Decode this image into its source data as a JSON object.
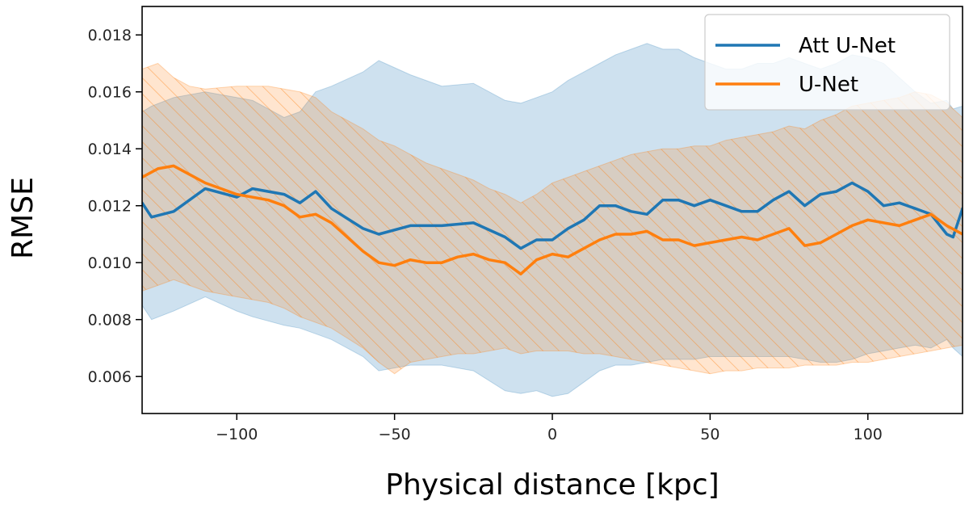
{
  "chart_data": {
    "type": "line",
    "title": "",
    "xlabel": "Physical distance [kpc]",
    "ylabel": "RMSE",
    "xlim": [
      -130,
      130
    ],
    "ylim": [
      0.0047,
      0.019
    ],
    "x_ticks": [
      -100,
      -50,
      0,
      50,
      100
    ],
    "x_tick_labels": [
      "−100",
      "−50",
      "0",
      "50",
      "100"
    ],
    "y_ticks": [
      0.006,
      0.008,
      0.01,
      0.012,
      0.014,
      0.016,
      0.018
    ],
    "y_tick_labels": [
      "0.006",
      "0.008",
      "0.010",
      "0.012",
      "0.014",
      "0.016",
      "0.018"
    ],
    "grid": false,
    "legend_position": "top-right",
    "series": [
      {
        "name": "Att U-Net",
        "color": "#1f77b4",
        "band_style": "solid fill",
        "x": [
          -130,
          -127,
          -120,
          -110,
          -100,
          -95,
          -85,
          -80,
          -75,
          -70,
          -60,
          -55,
          -45,
          -35,
          -25,
          -15,
          -10,
          -5,
          0,
          5,
          10,
          15,
          20,
          25,
          30,
          35,
          40,
          45,
          50,
          55,
          60,
          65,
          70,
          75,
          80,
          85,
          90,
          95,
          100,
          105,
          110,
          115,
          120,
          125,
          127,
          130
        ],
        "mean": [
          0.0121,
          0.0116,
          0.0118,
          0.0126,
          0.0123,
          0.0126,
          0.0124,
          0.0121,
          0.0125,
          0.0119,
          0.0112,
          0.011,
          0.0113,
          0.0113,
          0.0114,
          0.0109,
          0.0105,
          0.0108,
          0.0108,
          0.0112,
          0.0115,
          0.012,
          0.012,
          0.0118,
          0.0117,
          0.0122,
          0.0122,
          0.012,
          0.0122,
          0.012,
          0.0118,
          0.0118,
          0.0122,
          0.0125,
          0.012,
          0.0124,
          0.0125,
          0.0128,
          0.0125,
          0.012,
          0.0121,
          0.0119,
          0.0117,
          0.011,
          0.0109,
          0.0119
        ],
        "upper": [
          0.0153,
          0.0155,
          0.0158,
          0.016,
          0.0158,
          0.0157,
          0.0151,
          0.0153,
          0.016,
          0.0162,
          0.0167,
          0.0171,
          0.0166,
          0.0162,
          0.0163,
          0.0157,
          0.0156,
          0.0158,
          0.016,
          0.0164,
          0.0167,
          0.017,
          0.0173,
          0.0175,
          0.0177,
          0.0175,
          0.0175,
          0.0172,
          0.017,
          0.0168,
          0.0168,
          0.017,
          0.017,
          0.0172,
          0.017,
          0.0168,
          0.017,
          0.0173,
          0.0172,
          0.017,
          0.0165,
          0.016,
          0.0156,
          0.0157,
          0.0154,
          0.0155
        ],
        "lower": [
          0.0085,
          0.008,
          0.0083,
          0.0088,
          0.0083,
          0.0081,
          0.0078,
          0.0077,
          0.0075,
          0.0073,
          0.0067,
          0.0062,
          0.0064,
          0.0064,
          0.0062,
          0.0055,
          0.0054,
          0.0055,
          0.0053,
          0.0054,
          0.0058,
          0.0062,
          0.0064,
          0.0064,
          0.0065,
          0.0066,
          0.0066,
          0.0066,
          0.0067,
          0.0067,
          0.0067,
          0.0067,
          0.0067,
          0.0067,
          0.0066,
          0.0065,
          0.0065,
          0.0066,
          0.0068,
          0.0069,
          0.007,
          0.0071,
          0.007,
          0.0073,
          0.007,
          0.0067
        ]
      },
      {
        "name": "U-Net",
        "color": "#ff7f0e",
        "band_style": "hatched fill",
        "x": [
          -130,
          -125,
          -120,
          -115,
          -110,
          -100,
          -90,
          -85,
          -80,
          -75,
          -70,
          -60,
          -55,
          -50,
          -45,
          -40,
          -35,
          -30,
          -25,
          -20,
          -15,
          -10,
          -5,
          0,
          5,
          10,
          15,
          20,
          25,
          30,
          35,
          40,
          45,
          50,
          55,
          60,
          65,
          70,
          75,
          80,
          85,
          90,
          95,
          100,
          105,
          110,
          115,
          120,
          125,
          130
        ],
        "mean": [
          0.013,
          0.0133,
          0.0134,
          0.0131,
          0.0128,
          0.0124,
          0.0122,
          0.012,
          0.0116,
          0.0117,
          0.0114,
          0.0104,
          0.01,
          0.0099,
          0.0101,
          0.01,
          0.01,
          0.0102,
          0.0103,
          0.0101,
          0.01,
          0.0096,
          0.0101,
          0.0103,
          0.0102,
          0.0105,
          0.0108,
          0.011,
          0.011,
          0.0111,
          0.0108,
          0.0108,
          0.0106,
          0.0107,
          0.0108,
          0.0109,
          0.0108,
          0.011,
          0.0112,
          0.0106,
          0.0107,
          0.011,
          0.0113,
          0.0115,
          0.0114,
          0.0113,
          0.0115,
          0.0117,
          0.0113,
          0.011
        ],
        "upper": [
          0.0168,
          0.017,
          0.0165,
          0.0162,
          0.0161,
          0.0162,
          0.0162,
          0.0161,
          0.016,
          0.0158,
          0.0153,
          0.0147,
          0.0143,
          0.0141,
          0.0138,
          0.0135,
          0.0133,
          0.0131,
          0.0129,
          0.0126,
          0.0124,
          0.0121,
          0.0124,
          0.0128,
          0.013,
          0.0132,
          0.0134,
          0.0136,
          0.0138,
          0.0139,
          0.014,
          0.014,
          0.0141,
          0.0141,
          0.0143,
          0.0144,
          0.0145,
          0.0146,
          0.0148,
          0.0147,
          0.015,
          0.0152,
          0.0155,
          0.0156,
          0.0157,
          0.0158,
          0.016,
          0.0159,
          0.0156,
          0.0151
        ],
        "lower": [
          0.009,
          0.0092,
          0.0094,
          0.0092,
          0.009,
          0.0088,
          0.0086,
          0.0084,
          0.0081,
          0.0079,
          0.0077,
          0.007,
          0.0065,
          0.0061,
          0.0065,
          0.0066,
          0.0067,
          0.0068,
          0.0068,
          0.0069,
          0.007,
          0.0068,
          0.0069,
          0.0069,
          0.0069,
          0.0068,
          0.0068,
          0.0067,
          0.0066,
          0.0065,
          0.0064,
          0.0063,
          0.0062,
          0.0061,
          0.0062,
          0.0062,
          0.0063,
          0.0063,
          0.0063,
          0.0064,
          0.0064,
          0.0064,
          0.0065,
          0.0065,
          0.0066,
          0.0067,
          0.0068,
          0.0069,
          0.007,
          0.0071
        ]
      }
    ]
  }
}
